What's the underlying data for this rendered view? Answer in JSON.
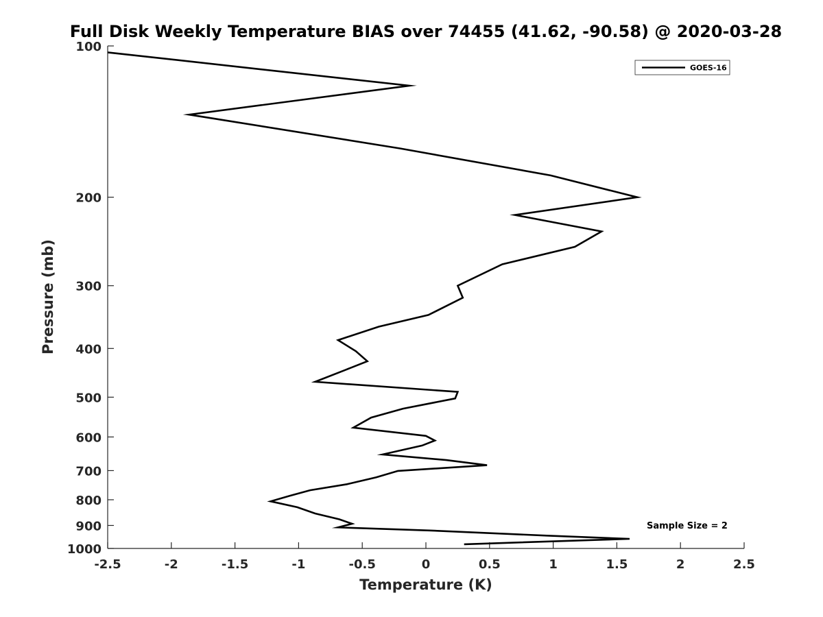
{
  "chart_data": {
    "type": "line",
    "title": "Full Disk Weekly Temperature BIAS over 74455 (41.62, -90.58) @ 2020-03-28",
    "xlabel": "Temperature (K)",
    "ylabel": "Pressure (mb)",
    "xlim": [
      -2.5,
      2.5
    ],
    "ylim": [
      1000,
      100
    ],
    "y_scale": "log",
    "y_reversed": true,
    "x_ticks": [
      -2.5,
      -2,
      -1.5,
      -1,
      -0.5,
      0,
      0.5,
      1,
      1.5,
      2,
      2.5
    ],
    "x_tick_labels": [
      "-2.5",
      "-2",
      "-1.5",
      "-1",
      "-0.5",
      "0",
      "0.5",
      "1",
      "1.5",
      "2",
      "2.5"
    ],
    "y_ticks": [
      100,
      200,
      300,
      400,
      500,
      600,
      700,
      800,
      900,
      1000
    ],
    "y_tick_labels": [
      "100",
      "200",
      "300",
      "400",
      "500",
      "600",
      "700",
      "800",
      "900",
      "1000"
    ],
    "grid": false,
    "legend_position": "top-right",
    "series": [
      {
        "name": "GOES-16",
        "color": "#000000",
        "points": [
          {
            "x": -2.5,
            "y": 103
          },
          {
            "x": -0.13,
            "y": 120
          },
          {
            "x": -1.86,
            "y": 137
          },
          {
            "x": -0.2,
            "y": 160
          },
          {
            "x": 0.98,
            "y": 181
          },
          {
            "x": 1.66,
            "y": 200
          },
          {
            "x": 0.7,
            "y": 217
          },
          {
            "x": 1.38,
            "y": 234
          },
          {
            "x": 1.17,
            "y": 251
          },
          {
            "x": 0.6,
            "y": 272
          },
          {
            "x": 0.25,
            "y": 300
          },
          {
            "x": 0.29,
            "y": 317
          },
          {
            "x": 0.02,
            "y": 343
          },
          {
            "x": -0.37,
            "y": 362
          },
          {
            "x": -0.69,
            "y": 385
          },
          {
            "x": -0.55,
            "y": 405
          },
          {
            "x": -0.46,
            "y": 424
          },
          {
            "x": -0.63,
            "y": 441
          },
          {
            "x": -0.87,
            "y": 466
          },
          {
            "x": 0.25,
            "y": 488
          },
          {
            "x": 0.23,
            "y": 503
          },
          {
            "x": -0.18,
            "y": 527
          },
          {
            "x": -0.43,
            "y": 549
          },
          {
            "x": -0.57,
            "y": 575
          },
          {
            "x": 0.0,
            "y": 597
          },
          {
            "x": 0.07,
            "y": 610
          },
          {
            "x": -0.03,
            "y": 624
          },
          {
            "x": -0.34,
            "y": 650
          },
          {
            "x": 0.16,
            "y": 667
          },
          {
            "x": 0.48,
            "y": 683
          },
          {
            "x": -0.22,
            "y": 701
          },
          {
            "x": -0.39,
            "y": 722
          },
          {
            "x": -0.62,
            "y": 745
          },
          {
            "x": -0.91,
            "y": 766
          },
          {
            "x": -1.07,
            "y": 786
          },
          {
            "x": -1.22,
            "y": 806
          },
          {
            "x": -1.01,
            "y": 828
          },
          {
            "x": -0.87,
            "y": 852
          },
          {
            "x": -0.68,
            "y": 875
          },
          {
            "x": -0.58,
            "y": 893
          },
          {
            "x": -0.69,
            "y": 908
          },
          {
            "x": 0.03,
            "y": 921
          },
          {
            "x": 0.95,
            "y": 943
          },
          {
            "x": 1.6,
            "y": 957
          },
          {
            "x": 0.3,
            "y": 981
          }
        ]
      }
    ],
    "annotations": [
      "Sample Size = 2"
    ]
  }
}
